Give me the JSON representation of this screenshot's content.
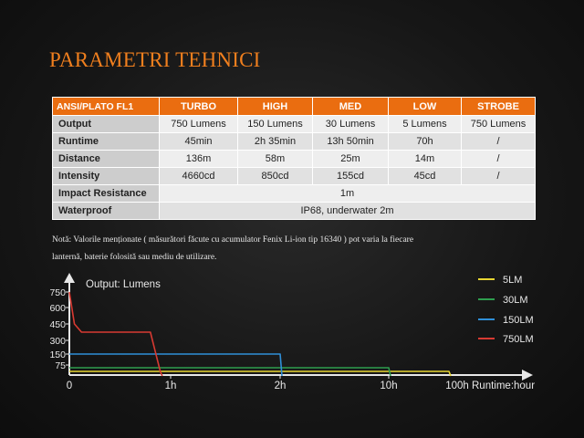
{
  "title": "PARAMETRI TEHNICI",
  "table": {
    "header": [
      "ANSI/PLATO FL1",
      "TURBO",
      "HIGH",
      "MED",
      "LOW",
      "STROBE"
    ],
    "rows": [
      [
        "Output",
        "750 Lumens",
        "150 Lumens",
        "30 Lumens",
        "5 Lumens",
        "750 Lumens"
      ],
      [
        "Runtime",
        "45min",
        "2h 35min",
        "13h 50min",
        "70h",
        "/"
      ],
      [
        "Distance",
        "136m",
        "58m",
        "25m",
        "14m",
        "/"
      ],
      [
        "Intensity",
        "4660cd",
        "850cd",
        "155cd",
        "45cd",
        "/"
      ]
    ],
    "impact_label": "Impact Resistance",
    "impact_value": "1m",
    "waterproof_label": "Waterproof",
    "waterproof_value": "IP68, underwater 2m"
  },
  "note": {
    "line1": "Notă: Valorile menționate ( măsurători făcute cu acumulator Fenix Li-ion tip 16340 ) pot varia la fiecare",
    "line2": "lanternă, baterie folosită sau mediu de utilizare."
  },
  "chart_data": {
    "type": "line",
    "ylabel": "Output: Lumens",
    "xlabel": "Runtime:hour",
    "y_ticks": [
      "750",
      "600",
      "450",
      "300",
      "150",
      "75"
    ],
    "x_ticks": [
      "0",
      "1h",
      "2h",
      "10h",
      "100h"
    ],
    "colors": {
      "5LM": "#e8d632",
      "30LM": "#2e9e4e",
      "150LM": "#2f8fd8",
      "750LM": "#d83a32"
    },
    "series": [
      {
        "name": "5LM",
        "points": [
          [
            0,
            5
          ],
          [
            100,
            5
          ]
        ]
      },
      {
        "name": "30LM",
        "points": [
          [
            0,
            30
          ],
          [
            10,
            30
          ]
        ]
      },
      {
        "name": "150LM",
        "points": [
          [
            0,
            150
          ],
          [
            2,
            150
          ]
        ]
      },
      {
        "name": "750LM",
        "points": [
          [
            0,
            750
          ],
          [
            0.05,
            450
          ],
          [
            0.12,
            390
          ],
          [
            0.8,
            390
          ],
          [
            0.9,
            0
          ]
        ]
      }
    ]
  }
}
